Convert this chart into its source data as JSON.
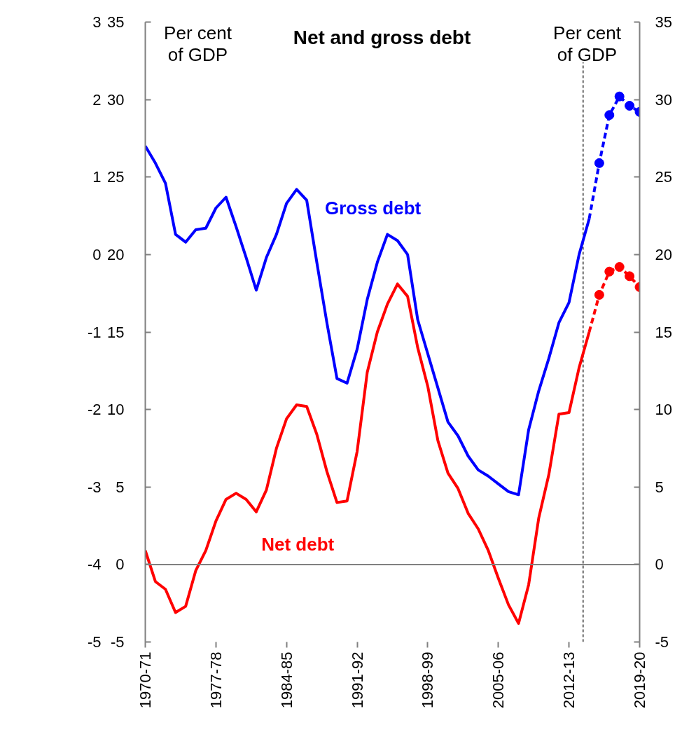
{
  "chart_data": {
    "type": "line",
    "title": "Net and gross debt",
    "ylabel": "Per cent of GDP",
    "y2label": "Per cent of GDP",
    "categories": [
      "1970-71",
      null,
      null,
      null,
      null,
      null,
      null,
      "1977-78",
      null,
      null,
      null,
      null,
      null,
      null,
      "1984-85",
      null,
      null,
      null,
      null,
      null,
      null,
      "1991-92",
      null,
      null,
      null,
      null,
      null,
      null,
      "1998-99",
      null,
      null,
      null,
      null,
      null,
      null,
      "2005-06",
      null,
      null,
      null,
      null,
      null,
      null,
      "2012-13",
      null,
      null,
      null,
      null,
      null,
      null,
      "2019-20"
    ],
    "ylim": [
      -5,
      35
    ],
    "yticks": [
      -5,
      0,
      5,
      10,
      15,
      20,
      25,
      30,
      35
    ],
    "y2lim": [
      -5,
      35
    ],
    "y2ticks": [
      -5,
      0,
      5,
      10,
      15,
      20,
      25,
      30,
      35
    ],
    "y3lim": [
      -5,
      3
    ],
    "y3ticks": [
      -5,
      -4,
      -3,
      -2,
      -1,
      0,
      1,
      2,
      3
    ],
    "grid": false,
    "ref_lines": [
      {
        "axis": "y",
        "value": 0,
        "color": "#808080",
        "line_style": "solid"
      }
    ],
    "series": [
      {
        "name": "Gross debt",
        "color": "#0000ff",
        "line_style": "solid",
        "marker": "none",
        "values": [
          27.0,
          25.9,
          24.6,
          21.3,
          20.8,
          21.6,
          21.7,
          23.0,
          23.7,
          21.8,
          19.8,
          17.7,
          19.8,
          21.3,
          23.3,
          24.2,
          23.5,
          19.5,
          15.6,
          12.0,
          11.7,
          13.9,
          17.1,
          19.5,
          21.3,
          20.9,
          20.0,
          15.8,
          13.6,
          11.4,
          9.2,
          8.3,
          7.0,
          6.1,
          5.7,
          5.2,
          4.7,
          4.5,
          8.7,
          11.2,
          13.3,
          15.6,
          16.9,
          20.0,
          22.3,
          null,
          null,
          null,
          null,
          null
        ]
      },
      {
        "name": "Net debt",
        "color": "#ff0000",
        "line_style": "solid",
        "marker": "none",
        "values": [
          0.9,
          -1.1,
          -1.6,
          -3.1,
          -2.7,
          -0.4,
          0.9,
          2.8,
          4.2,
          4.6,
          4.2,
          3.4,
          4.8,
          7.5,
          9.4,
          10.3,
          10.2,
          8.4,
          6.0,
          4.0,
          4.1,
          7.3,
          12.4,
          15.0,
          16.8,
          18.1,
          17.3,
          14.0,
          11.5,
          8.0,
          5.9,
          4.9,
          3.3,
          2.3,
          0.9,
          -0.9,
          -2.6,
          -3.8,
          -1.3,
          3.0,
          5.8,
          9.7,
          9.8,
          12.7,
          15.0,
          null,
          null,
          null,
          null,
          null
        ]
      },
      {
        "color": "#0000ff",
        "line_style": "dashed",
        "marker": "circle",
        "values": [
          null,
          null,
          null,
          null,
          null,
          null,
          null,
          null,
          null,
          null,
          null,
          null,
          null,
          null,
          null,
          null,
          null,
          null,
          null,
          null,
          null,
          null,
          null,
          null,
          null,
          null,
          null,
          null,
          null,
          null,
          null,
          null,
          null,
          null,
          null,
          null,
          null,
          null,
          null,
          null,
          null,
          null,
          null,
          null,
          22.3,
          25.9,
          29.0,
          30.2,
          29.6,
          29.2
        ]
      },
      {
        "color": "#ff0000",
        "line_style": "dashed",
        "marker": "circle",
        "values": [
          null,
          null,
          null,
          null,
          null,
          null,
          null,
          null,
          null,
          null,
          null,
          null,
          null,
          null,
          null,
          null,
          null,
          null,
          null,
          null,
          null,
          null,
          null,
          null,
          null,
          null,
          null,
          null,
          null,
          null,
          null,
          null,
          null,
          null,
          null,
          null,
          null,
          null,
          null,
          null,
          null,
          null,
          null,
          null,
          15.0,
          17.4,
          18.9,
          19.2,
          18.6,
          17.9
        ]
      }
    ]
  }
}
